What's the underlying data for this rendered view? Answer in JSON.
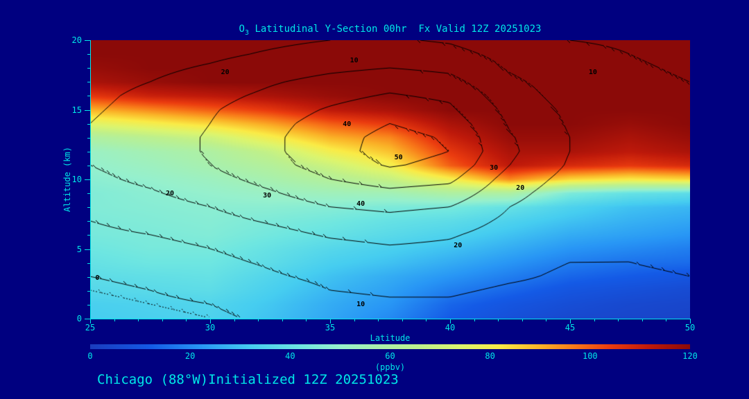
{
  "colors": {
    "background": "#000080",
    "foreground": "#00e8e8",
    "contour_line": "#000000"
  },
  "title": {
    "prefix": "O",
    "subscript": "3",
    "rest": " Latitudinal Y-Section 00hr  Fx Valid 12Z 20251023"
  },
  "footer": {
    "station": "Chicago (88°W)",
    "init": "Initialized 12Z 20251023"
  },
  "axes": {
    "x_label": "Latitude",
    "y_label": "Altitude (km)",
    "x_ticks": [
      25,
      30,
      35,
      40,
      45,
      50
    ],
    "x_minor_step": 1,
    "y_ticks": [
      0,
      5,
      10,
      15,
      20
    ],
    "y_minor_step": 1,
    "xlim": [
      25,
      50
    ],
    "ylim": [
      0,
      20
    ]
  },
  "colorbar": {
    "label": "(ppbv)",
    "ticks": [
      0,
      20,
      40,
      60,
      80,
      100,
      120
    ],
    "min": 0,
    "max": 120
  },
  "chart_data": {
    "type": "heatmap",
    "title": "O3 Latitudinal Y-Section 00hr Fx Valid 12Z 20251023",
    "forecast_hour": "00hr",
    "valid": "12Z 20251023",
    "initialized": "12Z 20251023",
    "location": "Chicago (88°W)",
    "xlabel": "Latitude",
    "ylabel": "Altitude (km)",
    "units": "ppbv",
    "xlim": [
      25,
      50
    ],
    "ylim": [
      0,
      20
    ],
    "clim": [
      0,
      120
    ],
    "shaded_field": {
      "name": "ozone_ppbv",
      "x": [
        25,
        27.5,
        30,
        32.5,
        35,
        37.5,
        40,
        42.5,
        45,
        47.5,
        50
      ],
      "y": [
        0,
        1,
        2,
        3,
        4,
        5,
        6,
        7,
        8,
        9,
        10,
        11,
        12,
        13,
        14,
        15,
        16,
        17,
        18,
        19,
        20
      ],
      "values": [
        [
          32,
          33,
          34,
          30,
          25,
          20,
          12,
          8,
          5,
          4,
          3
        ],
        [
          33,
          34,
          35,
          31,
          26,
          22,
          14,
          10,
          7,
          5,
          4
        ],
        [
          36,
          37,
          38,
          33,
          28,
          24,
          18,
          14,
          10,
          8,
          6
        ],
        [
          38,
          39,
          40,
          35,
          30,
          26,
          22,
          18,
          14,
          12,
          10
        ],
        [
          40,
          42,
          42,
          38,
          33,
          30,
          26,
          22,
          18,
          16,
          15
        ],
        [
          42,
          44,
          44,
          40,
          36,
          33,
          30,
          26,
          22,
          20,
          18
        ],
        [
          44,
          45,
          46,
          43,
          40,
          37,
          34,
          30,
          26,
          24,
          22
        ],
        [
          45,
          46,
          47,
          45,
          43,
          40,
          38,
          34,
          30,
          27,
          25
        ],
        [
          46,
          47,
          48,
          48,
          47,
          45,
          44,
          40,
          34,
          30,
          28
        ],
        [
          46,
          48,
          50,
          52,
          54,
          55,
          60,
          60,
          45,
          40,
          38
        ],
        [
          48,
          50,
          53,
          57,
          62,
          68,
          80,
          95,
          85,
          82,
          85
        ],
        [
          50,
          53,
          57,
          62,
          70,
          80,
          100,
          112,
          108,
          105,
          108
        ],
        [
          52,
          56,
          60,
          68,
          80,
          88,
          105,
          115,
          115,
          112,
          115
        ],
        [
          60,
          65,
          70,
          80,
          90,
          95,
          110,
          118,
          118,
          115,
          118
        ],
        [
          75,
          80,
          85,
          92,
          100,
          105,
          115,
          120,
          120,
          118,
          120
        ],
        [
          90,
          95,
          100,
          105,
          112,
          115,
          120,
          120,
          120,
          120,
          120
        ],
        [
          105,
          110,
          112,
          115,
          118,
          120,
          120,
          120,
          120,
          120,
          120
        ],
        [
          115,
          118,
          120,
          120,
          120,
          120,
          120,
          120,
          120,
          120,
          120
        ],
        [
          118,
          120,
          120,
          120,
          120,
          120,
          120,
          120,
          120,
          120,
          120
        ],
        [
          120,
          120,
          120,
          120,
          120,
          120,
          120,
          120,
          120,
          120,
          120
        ],
        [
          120,
          120,
          120,
          120,
          120,
          120,
          120,
          120,
          120,
          120,
          120
        ]
      ]
    },
    "contour_field": {
      "name": "contoured-field",
      "levels": [
        -2,
        0,
        10,
        20,
        30,
        40,
        50
      ],
      "x": [
        25,
        27.5,
        30,
        32.5,
        35,
        37.5,
        40,
        42.5,
        45,
        47.5,
        50
      ],
      "y": [
        0,
        1,
        2,
        3,
        4,
        5,
        6,
        7,
        8,
        9,
        10,
        11,
        12,
        13,
        14,
        15,
        16,
        17,
        18,
        19,
        20
      ],
      "values": [
        [
          -6,
          -4,
          -2,
          2,
          6,
          7,
          7,
          5,
          4,
          4,
          5
        ],
        [
          -4,
          -2,
          0,
          4,
          8,
          9,
          9,
          7,
          6,
          6,
          7
        ],
        [
          -2,
          0,
          3,
          6,
          10,
          11,
          11,
          9,
          8,
          8,
          9
        ],
        [
          0,
          2,
          5,
          9,
          12,
          14,
          13,
          11,
          9,
          9,
          10
        ],
        [
          3,
          5,
          8,
          11,
          14,
          16,
          15,
          12,
          10,
          10,
          11
        ],
        [
          5,
          7,
          10,
          13,
          17,
          19,
          18,
          14,
          11,
          10,
          11
        ],
        [
          8,
          10,
          13,
          17,
          21,
          23,
          21,
          16,
          12,
          11,
          12
        ],
        [
          10,
          13,
          17,
          21,
          25,
          27,
          25,
          18,
          13,
          12,
          12
        ],
        [
          13,
          16,
          20,
          25,
          30,
          32,
          30,
          20,
          14,
          12,
          13
        ],
        [
          16,
          19,
          24,
          29,
          35,
          38,
          36,
          23,
          15,
          13,
          13
        ],
        [
          18,
          22,
          27,
          33,
          40,
          44,
          42,
          26,
          17,
          14,
          14
        ],
        [
          20,
          24,
          30,
          37,
          44,
          51,
          47,
          30,
          19,
          15,
          14
        ],
        [
          21,
          25,
          31,
          38,
          46,
          54,
          50,
          32,
          20,
          16,
          15
        ],
        [
          21,
          25,
          31,
          38,
          46,
          53,
          49,
          31,
          20,
          16,
          14
        ],
        [
          20,
          24,
          30,
          37,
          44,
          50,
          46,
          29,
          19,
          15,
          13
        ],
        [
          19,
          23,
          29,
          35,
          41,
          46,
          42,
          27,
          18,
          14,
          12
        ],
        [
          18,
          22,
          27,
          32,
          37,
          41,
          38,
          25,
          16,
          13,
          11
        ],
        [
          17,
          20,
          24,
          29,
          33,
          36,
          33,
          22,
          15,
          12,
          10
        ],
        [
          15,
          18,
          21,
          25,
          28,
          30,
          28,
          19,
          13,
          11,
          9
        ],
        [
          14,
          16,
          18,
          21,
          24,
          25,
          23,
          17,
          12,
          10,
          8
        ],
        [
          13,
          14,
          16,
          18,
          20,
          21,
          19,
          14,
          10,
          9,
          7
        ]
      ]
    },
    "colormap_stops": [
      [
        0,
        "#1a3cbe"
      ],
      [
        12,
        "#145ae6"
      ],
      [
        22,
        "#2896f5"
      ],
      [
        32,
        "#46cdf0"
      ],
      [
        42,
        "#6ee6e1"
      ],
      [
        50,
        "#96f0cd"
      ],
      [
        58,
        "#aaf0aa"
      ],
      [
        66,
        "#bef08c"
      ],
      [
        74,
        "#dcf56e"
      ],
      [
        82,
        "#faeb46"
      ],
      [
        90,
        "#fab428"
      ],
      [
        97,
        "#f87819"
      ],
      [
        104,
        "#eb3c0f"
      ],
      [
        112,
        "#be190a"
      ],
      [
        120,
        "#8b0a08"
      ]
    ],
    "contour_labels": [
      {
        "v": "10",
        "x_pct": 44.0,
        "y_pct": 7.5
      },
      {
        "v": "20",
        "x_pct": 22.5,
        "y_pct": 11.7
      },
      {
        "v": "10",
        "x_pct": 83.8,
        "y_pct": 11.7
      },
      {
        "v": "40",
        "x_pct": 42.8,
        "y_pct": 30.3
      },
      {
        "v": "50",
        "x_pct": 51.4,
        "y_pct": 42.4
      },
      {
        "v": "30",
        "x_pct": 67.3,
        "y_pct": 46.0
      },
      {
        "v": "20",
        "x_pct": 71.7,
        "y_pct": 53.2
      },
      {
        "v": "20",
        "x_pct": 13.3,
        "y_pct": 55.2
      },
      {
        "v": "30",
        "x_pct": 29.5,
        "y_pct": 56.0
      },
      {
        "v": "40",
        "x_pct": 45.1,
        "y_pct": 59.0
      },
      {
        "v": "20",
        "x_pct": 61.3,
        "y_pct": 73.9
      },
      {
        "v": "0",
        "x_pct": 1.2,
        "y_pct": 85.6
      },
      {
        "v": "10",
        "x_pct": 45.1,
        "y_pct": 95.0
      }
    ]
  }
}
